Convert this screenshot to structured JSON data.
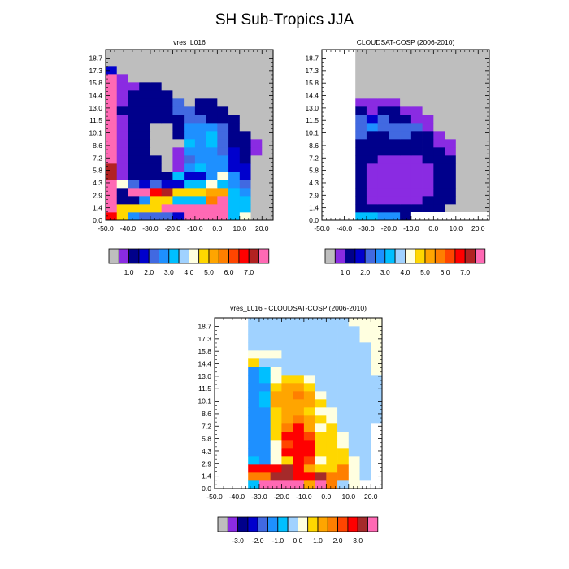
{
  "figure": {
    "title": "SH Sub-Tropics JJA"
  },
  "colors": {
    "missing": "#bebebe",
    "background": "#ffffff",
    "abs_palette": [
      "#bebebe",
      "#8a2be2",
      "#00008b",
      "#0000cd",
      "#4169e1",
      "#1e90ff",
      "#00bfff",
      "#a0d2ff",
      "#ffffe0",
      "#ffd700",
      "#ffa500",
      "#ff7f00",
      "#ff4500",
      "#ff0000",
      "#b22222",
      "#ff69b4"
    ],
    "diff_palette": [
      "#bebebe",
      "#8a2be2",
      "#00008b",
      "#0000cd",
      "#4169e1",
      "#1e90ff",
      "#00bfff",
      "#a0d2ff",
      "#ffffe0",
      "#ffd700",
      "#ffa500",
      "#ff7f00",
      "#ff4500",
      "#ff0000",
      "#a52a2a",
      "#ff69b4"
    ]
  },
  "chart_data": [
    {
      "id": "top-left",
      "type": "heatmap",
      "title": "vres_L016",
      "x_ticks": [
        "-50.0",
        "-40.0",
        "-30.0",
        "-20.0",
        "-10.0",
        "0.0",
        "10.0",
        "20.0"
      ],
      "x_tick_values": [
        -50,
        -40,
        -30,
        -20,
        -10,
        0,
        10,
        20
      ],
      "xlim": [
        -50,
        25
      ],
      "y_ticks": [
        "0.0",
        "1.4",
        "2.9",
        "4.3",
        "5.8",
        "7.2",
        "8.6",
        "10.1",
        "11.5",
        "13.0",
        "14.4",
        "15.8",
        "17.3",
        "18.7"
      ],
      "x_edges": [
        -50,
        -45,
        -40,
        -35,
        -30,
        -25,
        -20,
        -15,
        -10,
        -5,
        0,
        5,
        10,
        15,
        20,
        25
      ],
      "background": "missing",
      "colorbar": {
        "labels": [
          "1.0",
          "2.0",
          "3.0",
          "4.0",
          "5.0",
          "6.0",
          "7.0"
        ],
        "label_after_box": [
          2,
          4,
          6,
          8,
          10,
          12,
          14
        ]
      },
      "grid": [
        [
          13,
          9,
          5,
          4,
          4,
          4,
          3,
          15,
          15,
          15,
          15,
          6,
          8,
          0,
          0
        ],
        [
          15,
          9,
          9,
          9,
          9,
          15,
          15,
          15,
          15,
          15,
          15,
          6,
          6,
          0,
          0
        ],
        [
          15,
          2,
          2,
          5,
          9,
          9,
          6,
          6,
          6,
          11,
          15,
          6,
          6,
          0,
          0
        ],
        [
          15,
          2,
          15,
          15,
          13,
          14,
          9,
          9,
          9,
          10,
          10,
          6,
          5,
          0,
          0
        ],
        [
          15,
          8,
          4,
          3,
          4,
          3,
          3,
          6,
          6,
          8,
          6,
          5,
          4,
          0,
          0
        ],
        [
          14,
          1,
          2,
          2,
          2,
          2,
          6,
          3,
          3,
          5,
          8,
          5,
          3,
          0,
          0
        ],
        [
          14,
          1,
          2,
          2,
          2,
          0,
          1,
          5,
          6,
          5,
          5,
          3,
          3,
          0,
          0
        ],
        [
          15,
          1,
          2,
          2,
          2,
          0,
          1,
          4,
          5,
          5,
          5,
          3,
          2,
          0,
          0
        ],
        [
          15,
          1,
          2,
          2,
          0,
          0,
          1,
          5,
          5,
          5,
          4,
          3,
          2,
          1,
          0
        ],
        [
          15,
          1,
          2,
          2,
          0,
          0,
          0,
          6,
          5,
          6,
          4,
          2,
          2,
          1,
          0
        ],
        [
          15,
          1,
          2,
          2,
          0,
          0,
          2,
          5,
          5,
          6,
          4,
          2,
          2,
          0,
          0
        ],
        [
          15,
          1,
          2,
          2,
          0,
          0,
          2,
          5,
          5,
          5,
          4,
          2,
          0,
          0,
          0
        ],
        [
          15,
          1,
          2,
          2,
          2,
          2,
          2,
          4,
          4,
          2,
          2,
          2,
          0,
          0,
          0
        ],
        [
          15,
          2,
          2,
          2,
          2,
          2,
          4,
          4,
          2,
          2,
          2,
          0,
          0,
          0,
          0
        ],
        [
          15,
          1,
          2,
          2,
          2,
          2,
          4,
          0,
          2,
          2,
          0,
          0,
          0,
          0,
          0
        ],
        [
          15,
          1,
          2,
          2,
          2,
          2,
          0,
          0,
          0,
          0,
          0,
          0,
          0,
          0,
          0
        ],
        [
          15,
          1,
          1,
          2,
          2,
          0,
          0,
          0,
          0,
          0,
          0,
          0,
          0,
          0,
          0
        ],
        [
          15,
          1,
          0,
          0,
          0,
          0,
          0,
          0,
          0,
          0,
          0,
          0,
          0,
          0,
          0
        ],
        [
          3,
          0,
          0,
          0,
          0,
          0,
          0,
          0,
          0,
          0,
          0,
          0,
          0,
          0,
          0
        ],
        [
          0,
          0,
          0,
          0,
          0,
          0,
          0,
          0,
          0,
          0,
          0,
          0,
          0,
          0,
          0
        ],
        [
          0,
          0,
          0,
          0,
          0,
          0,
          0,
          0,
          0,
          0,
          0,
          0,
          0,
          0,
          0
        ]
      ]
    },
    {
      "id": "top-right",
      "type": "heatmap",
      "title": "CLOUDSAT-COSP (2006-2010)",
      "x_ticks": [
        "-50.0",
        "-40.0",
        "-30.0",
        "-20.0",
        "-10.0",
        "0.0",
        "10.0",
        "20.0"
      ],
      "x_tick_values": [
        -50,
        -40,
        -30,
        -20,
        -10,
        0,
        10,
        20
      ],
      "xlim": [
        -50,
        25
      ],
      "y_ticks": [
        "0.0",
        "1.4",
        "2.9",
        "4.3",
        "5.8",
        "7.2",
        "8.6",
        "10.1",
        "11.5",
        "13.0",
        "14.4",
        "15.8",
        "17.3",
        "18.7"
      ],
      "x_edges": [
        -50,
        -45,
        -40,
        -35,
        -30,
        -25,
        -20,
        -15,
        -10,
        -5,
        0,
        5,
        10,
        15,
        20,
        25
      ],
      "background": "missing",
      "colorbar": {
        "labels": [
          "1.0",
          "2.0",
          "3.0",
          "4.0",
          "5.0",
          "6.0",
          "7.0"
        ],
        "label_after_box": [
          2,
          4,
          6,
          8,
          10,
          12,
          14
        ]
      },
      "blank_region": "x<-35 all heights; height<1.4 for x>=-10",
      "grid": [
        [
          -1,
          -1,
          -1,
          6,
          6,
          5,
          5,
          2,
          2,
          2,
          2,
          -1,
          -1,
          -1,
          -1
        ],
        [
          -1,
          -1,
          -1,
          2,
          2,
          2,
          2,
          2,
          2,
          2,
          2,
          0,
          0,
          0,
          0
        ],
        [
          -1,
          -1,
          -1,
          2,
          1,
          1,
          1,
          1,
          1,
          2,
          2,
          2,
          0,
          0,
          0
        ],
        [
          -1,
          -1,
          -1,
          2,
          1,
          1,
          1,
          1,
          1,
          1,
          2,
          2,
          0,
          0,
          0
        ],
        [
          -1,
          -1,
          -1,
          2,
          1,
          1,
          1,
          1,
          1,
          1,
          2,
          2,
          0,
          0,
          0
        ],
        [
          -1,
          -1,
          -1,
          2,
          1,
          1,
          1,
          1,
          1,
          1,
          2,
          2,
          0,
          0,
          0
        ],
        [
          -1,
          -1,
          -1,
          2,
          1,
          1,
          1,
          1,
          1,
          1,
          2,
          2,
          0,
          0,
          0
        ],
        [
          -1,
          -1,
          -1,
          2,
          2,
          1,
          1,
          1,
          1,
          2,
          2,
          2,
          0,
          0,
          0
        ],
        [
          -1,
          -1,
          -1,
          2,
          2,
          2,
          2,
          2,
          2,
          2,
          2,
          1,
          0,
          0,
          0
        ],
        [
          -1,
          -1,
          -1,
          2,
          2,
          2,
          2,
          2,
          2,
          2,
          1,
          1,
          0,
          0,
          0
        ],
        [
          -1,
          -1,
          -1,
          4,
          2,
          2,
          4,
          4,
          2,
          2,
          1,
          0,
          0,
          0,
          0
        ],
        [
          -1,
          -1,
          -1,
          4,
          5,
          4,
          4,
          4,
          4,
          1,
          0,
          0,
          0,
          0,
          0
        ],
        [
          -1,
          -1,
          -1,
          4,
          3,
          4,
          2,
          2,
          1,
          1,
          0,
          0,
          0,
          0,
          0
        ],
        [
          -1,
          -1,
          -1,
          2,
          1,
          2,
          2,
          1,
          1,
          0,
          0,
          0,
          0,
          0,
          0
        ],
        [
          -1,
          -1,
          -1,
          1,
          1,
          1,
          1,
          0,
          0,
          0,
          0,
          0,
          0,
          0,
          0
        ],
        [
          -1,
          -1,
          -1,
          0,
          0,
          0,
          0,
          0,
          0,
          0,
          0,
          0,
          0,
          0,
          0
        ],
        [
          -1,
          -1,
          -1,
          0,
          0,
          0,
          0,
          0,
          0,
          0,
          0,
          0,
          0,
          0,
          0
        ],
        [
          -1,
          -1,
          -1,
          0,
          0,
          0,
          0,
          0,
          0,
          0,
          0,
          0,
          0,
          0,
          0
        ],
        [
          -1,
          -1,
          -1,
          0,
          0,
          0,
          0,
          0,
          0,
          0,
          0,
          0,
          0,
          0,
          0
        ],
        [
          -1,
          -1,
          -1,
          0,
          0,
          0,
          0,
          0,
          0,
          0,
          0,
          0,
          0,
          0,
          0
        ],
        [
          -1,
          -1,
          -1,
          0,
          0,
          0,
          0,
          0,
          0,
          0,
          0,
          0,
          0,
          0,
          0
        ]
      ]
    },
    {
      "id": "bottom",
      "type": "heatmap",
      "title": "vres_L016 - CLOUDSAT-COSP (2006-2010)",
      "x_ticks": [
        "-50.0",
        "-40.0",
        "-30.0",
        "-20.0",
        "-10.0",
        "0.0",
        "10.0",
        "20.0"
      ],
      "x_tick_values": [
        -50,
        -40,
        -30,
        -20,
        -10,
        0,
        10,
        20
      ],
      "xlim": [
        -50,
        25
      ],
      "y_ticks": [
        "0.0",
        "1.4",
        "2.9",
        "4.3",
        "5.8",
        "7.2",
        "8.6",
        "10.1",
        "11.5",
        "13.0",
        "14.4",
        "15.8",
        "17.3",
        "18.7"
      ],
      "x_edges": [
        -50,
        -45,
        -40,
        -35,
        -30,
        -25,
        -20,
        -15,
        -10,
        -5,
        0,
        5,
        10,
        15,
        20,
        25
      ],
      "background": "white",
      "colorbar": {
        "labels": [
          "-3.0",
          "-2.0",
          "-1.0",
          "0.0",
          "1.0",
          "2.0",
          "3.0"
        ],
        "label_after_box": [
          2,
          4,
          6,
          8,
          10,
          12,
          14
        ]
      },
      "grid": [
        [
          -1,
          -1,
          -1,
          6,
          15,
          15,
          15,
          15,
          10,
          15,
          11,
          7,
          8,
          -1,
          -1
        ],
        [
          -1,
          -1,
          -1,
          11,
          11,
          14,
          14,
          13,
          13,
          14,
          11,
          11,
          8,
          7,
          -1
        ],
        [
          -1,
          -1,
          -1,
          13,
          13,
          13,
          14,
          13,
          10,
          9,
          9,
          11,
          8,
          7,
          -1
        ],
        [
          -1,
          -1,
          -1,
          6,
          5,
          8,
          9,
          13,
          12,
          8,
          9,
          9,
          8,
          7,
          -1
        ],
        [
          -1,
          -1,
          -1,
          5,
          5,
          8,
          13,
          13,
          13,
          9,
          9,
          9,
          7,
          7,
          -1
        ],
        [
          -1,
          -1,
          -1,
          5,
          5,
          8,
          12,
          13,
          13,
          9,
          9,
          8,
          7,
          7,
          -1
        ],
        [
          -1,
          -1,
          -1,
          5,
          5,
          9,
          13,
          13,
          12,
          9,
          9,
          8,
          7,
          7,
          -1
        ],
        [
          -1,
          -1,
          -1,
          5,
          5,
          9,
          11,
          13,
          10,
          8,
          9,
          7,
          7,
          7,
          -1
        ],
        [
          -1,
          -1,
          -1,
          5,
          5,
          9,
          10,
          11,
          10,
          9,
          8,
          7,
          7,
          7,
          7
        ],
        [
          -1,
          -1,
          -1,
          5,
          5,
          9,
          10,
          10,
          9,
          8,
          8,
          7,
          7,
          7,
          7
        ],
        [
          -1,
          -1,
          -1,
          5,
          6,
          10,
          10,
          10,
          10,
          9,
          7,
          7,
          7,
          7,
          7
        ],
        [
          -1,
          -1,
          -1,
          5,
          6,
          10,
          10,
          11,
          10,
          8,
          7,
          7,
          7,
          7,
          7
        ],
        [
          -1,
          -1,
          -1,
          5,
          5,
          9,
          10,
          10,
          9,
          7,
          7,
          7,
          7,
          7,
          7
        ],
        [
          -1,
          -1,
          -1,
          5,
          6,
          8,
          9,
          9,
          8,
          7,
          7,
          7,
          7,
          7,
          7
        ],
        [
          -1,
          -1,
          -1,
          5,
          6,
          8,
          7,
          7,
          7,
          7,
          7,
          7,
          7,
          7,
          8
        ],
        [
          -1,
          -1,
          -1,
          9,
          7,
          7,
          7,
          7,
          7,
          7,
          7,
          7,
          7,
          7,
          8
        ],
        [
          -1,
          -1,
          -1,
          8,
          8,
          8,
          7,
          7,
          7,
          7,
          7,
          7,
          7,
          7,
          8
        ],
        [
          -1,
          -1,
          -1,
          7,
          7,
          7,
          7,
          7,
          7,
          7,
          7,
          7,
          7,
          7,
          8
        ],
        [
          -1,
          -1,
          -1,
          7,
          7,
          7,
          7,
          7,
          7,
          7,
          7,
          7,
          7,
          8,
          8
        ],
        [
          -1,
          -1,
          -1,
          7,
          7,
          7,
          7,
          7,
          7,
          7,
          7,
          7,
          7,
          8,
          8
        ],
        [
          -1,
          -1,
          -1,
          7,
          7,
          7,
          7,
          7,
          7,
          7,
          7,
          7,
          8,
          8,
          8
        ]
      ]
    }
  ]
}
